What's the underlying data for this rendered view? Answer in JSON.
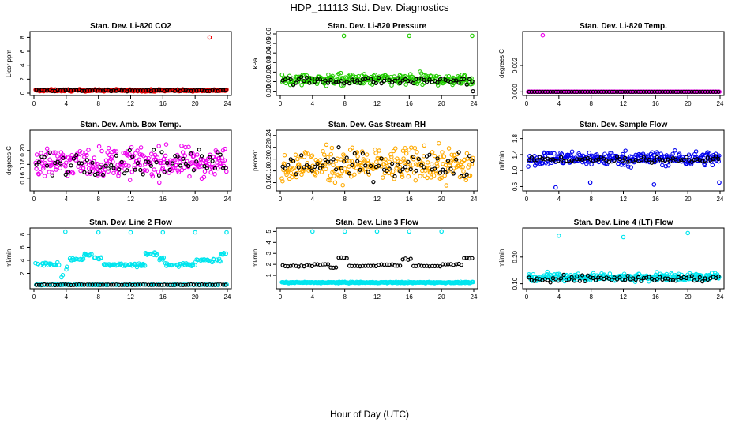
{
  "title": "HDP_111113  Std. Dev. Diagnostics",
  "xlabel": "Hour of Day (UTC)",
  "colors": {
    "black": "#000000",
    "red": "#ee0000",
    "green": "#22cc00",
    "magenta": "#ee00ee",
    "orange": "#ffaa00",
    "blue": "#0000ee",
    "cyan": "#00e5ee"
  },
  "chart_data": [
    {
      "type": "scatter",
      "title": "Stan. Dev. Li-820 CO2",
      "ylabel": "Licor ppm",
      "xlim": [
        0,
        24
      ],
      "ylim": [
        0,
        8.5
      ],
      "xticks": [
        "0",
        "4",
        "8",
        "12",
        "16",
        "20",
        "24"
      ],
      "yticks": [
        "0",
        "2",
        "4",
        "6",
        "8"
      ],
      "ytick_values": [
        0,
        2,
        4,
        6,
        8
      ],
      "color": "red",
      "base": 0.4,
      "noise": 0.15,
      "black_base": 0.4,
      "black_noise": 0.12,
      "outliers": [
        [
          21.8,
          8.0
        ]
      ],
      "black_outliers": []
    },
    {
      "type": "scatter",
      "title": "Stan. Dev. Li-820 Pressure",
      "ylabel": "kPa",
      "xlim": [
        0,
        24
      ],
      "ylim": [
        -0.002,
        0.06
      ],
      "xticks": [
        "0",
        "4",
        "8",
        "12",
        "16",
        "20",
        "24"
      ],
      "yticks": [
        "0.00",
        "0.01",
        "0.02",
        "0.03",
        "0.04",
        "0.05",
        "0.06"
      ],
      "ytick_values": [
        0,
        0.01,
        0.02,
        0.03,
        0.04,
        0.05,
        0.06
      ],
      "color": "green",
      "base": 0.012,
      "noise": 0.006,
      "black_base": 0.011,
      "black_noise": 0.004,
      "outliers": [
        [
          7.9,
          0.058
        ],
        [
          16.0,
          0.058
        ],
        [
          23.8,
          0.058
        ]
      ],
      "black_outliers": [
        [
          23.9,
          0.0
        ]
      ]
    },
    {
      "type": "scatter",
      "title": "Stan. Dev. Li-820 Temp.",
      "ylabel": "degrees C",
      "xlim": [
        0,
        24
      ],
      "ylim": [
        -0.0001,
        0.0044
      ],
      "xticks": [
        "0",
        "4",
        "8",
        "12",
        "16",
        "20",
        "24"
      ],
      "yticks": [
        "0.000",
        "0.002"
      ],
      "ytick_values": [
        0,
        0.002
      ],
      "color": "magenta",
      "base": 0.0,
      "noise": 0.0,
      "black_base": 0.0,
      "black_noise": 0.0,
      "outliers": [
        [
          2.0,
          0.0043
        ]
      ],
      "black_outliers": []
    },
    {
      "type": "scatter",
      "title": "Stan. Dev. Amb. Box Temp.",
      "ylabel": "degrees C",
      "xlim": [
        0,
        24
      ],
      "ylim": [
        0.145,
        0.226
      ],
      "xticks": [
        "0",
        "4",
        "8",
        "12",
        "16",
        "20",
        "24"
      ],
      "yticks": [
        "0.16",
        "0.18",
        "0.20"
      ],
      "ytick_values": [
        0.16,
        0.18,
        0.2
      ],
      "color": "magenta",
      "base": 0.183,
      "noise": 0.022,
      "black_base": 0.183,
      "black_noise": 0.018,
      "outliers": [],
      "black_outliers": []
    },
    {
      "type": "scatter",
      "title": "Stan. Dev. Gas Stream RH",
      "ylabel": "percent",
      "xlim": [
        0,
        24
      ],
      "ylim": [
        0.15,
        0.245
      ],
      "xticks": [
        "0",
        "4",
        "8",
        "12",
        "16",
        "20",
        "24"
      ],
      "yticks": [
        "0.16",
        "0.18",
        "0.20",
        "0.22",
        "0.24"
      ],
      "ytick_values": [
        0.16,
        0.18,
        0.2,
        0.22,
        0.24
      ],
      "color": "orange",
      "base": 0.19,
      "noise": 0.03,
      "black_base": 0.19,
      "black_noise": 0.022,
      "outliers": [],
      "black_outliers": []
    },
    {
      "type": "scatter",
      "title": "Stan. Dev. Sample Flow",
      "ylabel": "ml/min",
      "xlim": [
        0,
        24
      ],
      "ylim": [
        0.55,
        1.95
      ],
      "xticks": [
        "0",
        "4",
        "8",
        "12",
        "16",
        "20",
        "24"
      ],
      "yticks": [
        "0.6",
        "1.0",
        "1.4",
        "1.8"
      ],
      "ytick_values": [
        0.6,
        1.0,
        1.4,
        1.8
      ],
      "color": "blue",
      "base": 1.3,
      "noise": 0.18,
      "black_base": 1.28,
      "black_noise": 0.08,
      "outliers": [
        [
          3.6,
          0.58
        ],
        [
          7.9,
          0.7
        ],
        [
          15.8,
          0.65
        ],
        [
          23.9,
          0.7
        ]
      ],
      "black_outliers": []
    },
    {
      "type": "scatter",
      "title": "Stan. Dev. Line 2 Flow",
      "ylabel": "ml/min",
      "xlim": [
        0,
        24
      ],
      "ylim": [
        0.0,
        8.6
      ],
      "xticks": [
        "0",
        "4",
        "8",
        "12",
        "16",
        "20",
        "24"
      ],
      "yticks": [
        "2",
        "4",
        "6",
        "8"
      ],
      "ytick_values": [
        2,
        4,
        6,
        8
      ],
      "color": "cyan",
      "base": "line2",
      "noise": 0.25,
      "black_base": 0.25,
      "black_noise": 0.05,
      "outliers": [
        [
          3.9,
          8.4
        ],
        [
          8.0,
          8.3
        ],
        [
          12.0,
          8.3
        ],
        [
          16.0,
          8.3
        ],
        [
          20.0,
          8.3
        ],
        [
          23.9,
          8.3
        ]
      ],
      "black_outliers": []
    },
    {
      "type": "scatter",
      "title": "Stan. Dev. Line 3 Flow",
      "ylabel": "ml/min",
      "xlim": [
        0,
        24
      ],
      "ylim": [
        0.0,
        5.1
      ],
      "xticks": [
        "0",
        "4",
        "8",
        "12",
        "16",
        "20",
        "24"
      ],
      "yticks": [
        "1",
        "2",
        "3",
        "4",
        "5"
      ],
      "ytick_values": [
        1,
        2,
        3,
        4,
        5
      ],
      "color": "cyan",
      "base": 0.35,
      "noise": 0.06,
      "black_base": "line3",
      "black_noise": 0.06,
      "outliers": [
        [
          4.0,
          5.0
        ],
        [
          8.0,
          5.0
        ],
        [
          12.0,
          5.0
        ],
        [
          16.0,
          5.0
        ],
        [
          20.0,
          5.0
        ]
      ],
      "black_outliers": []
    },
    {
      "type": "scatter",
      "title": "Stan. Dev. Line 4 (LT) Flow",
      "ylabel": "ml/min",
      "xlim": [
        0,
        24
      ],
      "ylim": [
        0.09,
        0.3
      ],
      "xticks": [
        "0",
        "4",
        "8",
        "12",
        "16",
        "20",
        "24"
      ],
      "yticks": [
        "0.10",
        "0.20"
      ],
      "ytick_values": [
        0.1,
        0.2
      ],
      "color": "cyan",
      "base": 0.125,
      "noise": 0.015,
      "black_base": 0.12,
      "black_noise": 0.012,
      "outliers": [
        [
          4.0,
          0.28
        ],
        [
          12.0,
          0.275
        ],
        [
          20.0,
          0.29
        ]
      ],
      "black_outliers": []
    }
  ]
}
